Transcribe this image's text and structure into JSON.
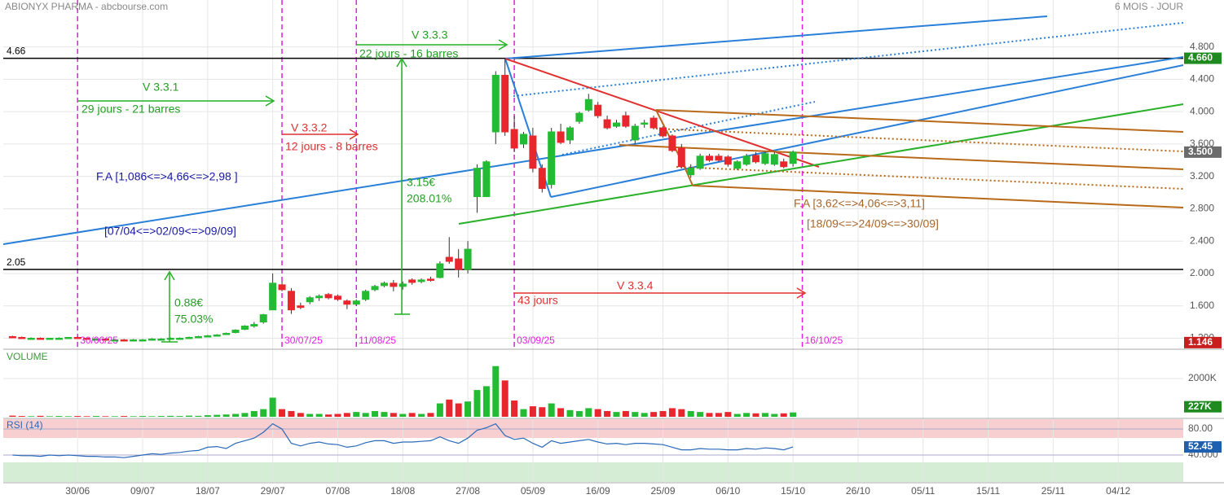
{
  "chart_data": {
    "type": "candlestick",
    "title": "ABIONYX PHARMA - abcbourse.com",
    "subtitle": "6 MOIS - JOUR",
    "up_color": "#22bb33",
    "down_color": "#e8262d",
    "ohlc": [
      [
        1.22,
        1.23,
        1.21,
        1.21
      ],
      [
        1.21,
        1.22,
        1.2,
        1.2
      ],
      [
        1.2,
        1.21,
        1.19,
        1.2
      ],
      [
        1.2,
        1.21,
        1.19,
        1.19
      ],
      [
        1.19,
        1.2,
        1.18,
        1.2
      ],
      [
        1.2,
        1.21,
        1.19,
        1.2
      ],
      [
        1.2,
        1.21,
        1.19,
        1.21
      ],
      [
        1.21,
        1.22,
        1.2,
        1.2
      ],
      [
        1.2,
        1.21,
        1.19,
        1.19
      ],
      [
        1.19,
        1.2,
        1.18,
        1.19
      ],
      [
        1.19,
        1.2,
        1.18,
        1.18
      ],
      [
        1.18,
        1.19,
        1.17,
        1.18
      ],
      [
        1.18,
        1.19,
        1.17,
        1.17
      ],
      [
        1.17,
        1.19,
        1.16,
        1.18
      ],
      [
        1.18,
        1.19,
        1.17,
        1.18
      ],
      [
        1.18,
        1.2,
        1.17,
        1.19
      ],
      [
        1.19,
        1.2,
        1.18,
        1.19
      ],
      [
        1.19,
        1.21,
        1.18,
        1.2
      ],
      [
        1.2,
        1.21,
        1.19,
        1.2
      ],
      [
        1.2,
        1.22,
        1.19,
        1.21
      ],
      [
        1.21,
        1.23,
        1.2,
        1.22
      ],
      [
        1.22,
        1.24,
        1.21,
        1.23
      ],
      [
        1.23,
        1.25,
        1.22,
        1.24
      ],
      [
        1.25,
        1.27,
        1.24,
        1.26
      ],
      [
        1.27,
        1.31,
        1.26,
        1.3
      ],
      [
        1.31,
        1.36,
        1.3,
        1.35
      ],
      [
        1.35,
        1.4,
        1.33,
        1.37
      ],
      [
        1.4,
        1.5,
        1.38,
        1.49
      ],
      [
        1.55,
        2.0,
        1.55,
        1.88
      ],
      [
        1.86,
        1.9,
        1.78,
        1.8
      ],
      [
        1.78,
        1.82,
        1.5,
        1.55
      ],
      [
        1.6,
        1.64,
        1.56,
        1.58
      ],
      [
        1.65,
        1.72,
        1.62,
        1.7
      ],
      [
        1.7,
        1.74,
        1.66,
        1.72
      ],
      [
        1.74,
        1.76,
        1.68,
        1.7
      ],
      [
        1.72,
        1.74,
        1.66,
        1.68
      ],
      [
        1.66,
        1.68,
        1.56,
        1.62
      ],
      [
        1.62,
        1.68,
        1.6,
        1.66
      ],
      [
        1.68,
        1.8,
        1.66,
        1.78
      ],
      [
        1.8,
        1.86,
        1.78,
        1.84
      ],
      [
        1.85,
        1.9,
        1.83,
        1.88
      ],
      [
        1.88,
        1.92,
        1.78,
        1.84
      ],
      [
        1.84,
        1.9,
        1.8,
        1.87
      ],
      [
        1.92,
        1.94,
        1.86,
        1.89
      ],
      [
        1.9,
        1.94,
        1.88,
        1.92
      ],
      [
        1.93,
        1.96,
        1.9,
        1.92
      ],
      [
        1.95,
        2.15,
        1.94,
        2.12
      ],
      [
        2.2,
        2.45,
        2.12,
        2.15
      ],
      [
        2.18,
        2.3,
        1.95,
        2.05
      ],
      [
        2.05,
        2.4,
        2.0,
        2.3
      ],
      [
        2.95,
        3.35,
        2.75,
        3.3
      ],
      [
        2.95,
        3.4,
        2.95,
        3.38
      ],
      [
        3.75,
        4.5,
        3.6,
        4.45
      ],
      [
        4.45,
        4.66,
        3.7,
        3.75
      ],
      [
        3.78,
        3.95,
        3.5,
        3.55
      ],
      [
        3.6,
        3.75,
        3.55,
        3.72
      ],
      [
        3.7,
        3.8,
        3.25,
        3.3
      ],
      [
        3.3,
        3.35,
        3.0,
        3.05
      ],
      [
        3.1,
        3.8,
        3.05,
        3.75
      ],
      [
        3.75,
        3.85,
        3.6,
        3.62
      ],
      [
        3.65,
        3.82,
        3.6,
        3.8
      ],
      [
        3.88,
        4.0,
        3.85,
        3.98
      ],
      [
        4.02,
        4.22,
        4.0,
        4.15
      ],
      [
        4.08,
        4.12,
        3.92,
        3.95
      ],
      [
        3.9,
        3.95,
        3.78,
        3.8
      ],
      [
        3.82,
        3.9,
        3.8,
        3.86
      ],
      [
        3.95,
        4.0,
        3.8,
        3.82
      ],
      [
        3.65,
        3.85,
        3.6,
        3.82
      ],
      [
        3.85,
        3.9,
        3.8,
        3.86
      ],
      [
        3.92,
        3.95,
        3.78,
        3.8
      ],
      [
        3.8,
        3.82,
        3.68,
        3.7
      ],
      [
        3.7,
        3.72,
        3.5,
        3.52
      ],
      [
        3.55,
        3.6,
        3.3,
        3.32
      ],
      [
        3.22,
        3.35,
        3.18,
        3.3
      ],
      [
        3.3,
        3.48,
        3.28,
        3.45
      ],
      [
        3.45,
        3.48,
        3.38,
        3.4
      ],
      [
        3.45,
        3.48,
        3.38,
        3.4
      ],
      [
        3.44,
        3.46,
        3.32,
        3.35
      ],
      [
        3.3,
        3.4,
        3.28,
        3.38
      ],
      [
        3.35,
        3.48,
        3.33,
        3.45
      ],
      [
        3.46,
        3.5,
        3.36,
        3.38
      ],
      [
        3.36,
        3.5,
        3.34,
        3.48
      ],
      [
        3.35,
        3.5,
        3.33,
        3.47
      ],
      [
        3.38,
        3.42,
        3.3,
        3.32
      ],
      [
        3.36,
        3.52,
        3.32,
        3.5
      ]
    ],
    "xlim": [
      -1,
      126
    ],
    "xticks": [
      {
        "value": 7,
        "label": "30/06"
      },
      {
        "value": 14,
        "label": "09/07"
      },
      {
        "value": 21,
        "label": "18/07"
      },
      {
        "value": 28,
        "label": "29/07"
      },
      {
        "value": 35,
        "label": "07/08"
      },
      {
        "value": 42,
        "label": "18/08"
      },
      {
        "value": 49,
        "label": "27/08"
      },
      {
        "value": 56,
        "label": "05/09"
      },
      {
        "value": 63,
        "label": "16/09"
      },
      {
        "value": 70,
        "label": "25/09"
      },
      {
        "value": 77,
        "label": "06/10"
      },
      {
        "value": 84,
        "label": "15/10"
      },
      {
        "value": 91,
        "label": "26/10"
      },
      {
        "value": 98,
        "label": "05/11"
      },
      {
        "value": 105,
        "label": "15/11"
      },
      {
        "value": 112,
        "label": "25/11"
      },
      {
        "value": 119,
        "label": "04/12"
      }
    ],
    "ylim": [
      1.074,
      5.38
    ],
    "yticks": [
      {
        "value": 1.2,
        "label": "1.200"
      },
      {
        "value": 1.6,
        "label": "1.600"
      },
      {
        "value": 2,
        "label": "2.000"
      },
      {
        "value": 2.4,
        "label": "2.400"
      },
      {
        "value": 2.8,
        "label": "2.800"
      },
      {
        "value": 3.2,
        "label": "3.200"
      },
      {
        "value": 3.6,
        "label": "3.600"
      },
      {
        "value": 4,
        "label": "4.000"
      },
      {
        "value": 4.4,
        "label": "4.400"
      },
      {
        "value": 4.8,
        "label": "4.800"
      }
    ],
    "grid": true,
    "hlines": [
      {
        "value": 4.66,
        "label": "4.66",
        "badge": "4.660"
      },
      {
        "value": 2.05,
        "label": "2.05"
      }
    ],
    "last_price": {
      "value": 3.5,
      "label": "3.500"
    },
    "low_badge": {
      "value": 1.146,
      "label": "1.146"
    },
    "vlines": [
      {
        "x": 7,
        "label": "30/06/25"
      },
      {
        "x": 29,
        "label": "30/07/25"
      },
      {
        "x": 37,
        "label": "11/08/25"
      },
      {
        "x": 54,
        "label": "03/09/25"
      },
      {
        "x": 85,
        "label": "16/10/25"
      }
    ],
    "annotations": [
      "V 3.3.1",
      "29 jours - 21 barres",
      "V 3.3.2",
      "12 jours - 8 barres",
      "V 3.3.3",
      "22 jours - 16 barres",
      "V 3.3.4",
      "43 jours",
      "0.88€",
      "75.03%",
      "3.15€",
      "208.01%",
      "F.A [1,086<=>4,66<=>2,98 ]",
      "[07/04<=>02/09<=>09/09]",
      "F.A [3,62<=>4,06<=>3,11]",
      "[18/09<=>24/09<=>30/09]"
    ],
    "volume": {
      "title": "VOLUME",
      "ylim": [
        0,
        3490
      ],
      "yticks": [
        {
          "value": 2000,
          "label": "2000K"
        }
      ],
      "last_label": "227K",
      "values": [
        60,
        40,
        30,
        50,
        30,
        40,
        30,
        40,
        30,
        40,
        30,
        30,
        40,
        30,
        40,
        30,
        40,
        50,
        40,
        60,
        50,
        80,
        100,
        120,
        150,
        200,
        300,
        400,
        1000,
        400,
        300,
        200,
        150,
        150,
        120,
        150,
        200,
        250,
        200,
        300,
        250,
        200,
        150,
        200,
        150,
        200,
        700,
        900,
        700,
        800,
        1400,
        1600,
        2650,
        1900,
        850,
        400,
        550,
        500,
        700,
        450,
        350,
        300,
        450,
        400,
        300,
        250,
        300,
        250,
        200,
        250,
        300,
        450,
        400,
        300,
        250,
        200,
        200,
        250,
        150,
        200,
        180,
        200,
        150,
        180,
        227
      ]
    },
    "rsi": {
      "title": "RSI (14)",
      "color": "#2a6ab8",
      "ylim": [
        -1.25,
        95
      ],
      "yticks": [
        {
          "value": 80,
          "label": "80.00"
        },
        {
          "value": 40,
          "label": "40.000"
        }
      ],
      "values": [
        40,
        39,
        39,
        38,
        40,
        39,
        40,
        39,
        38,
        38,
        37,
        37,
        36,
        38,
        40,
        42,
        41,
        43,
        44,
        46,
        47,
        52,
        53,
        50,
        58,
        62,
        66,
        75,
        88,
        80,
        58,
        54,
        58,
        60,
        57,
        56,
        52,
        54,
        59,
        62,
        62,
        58,
        60,
        60,
        61,
        62,
        68,
        62,
        58,
        66,
        78,
        82,
        88,
        70,
        64,
        66,
        58,
        52,
        62,
        58,
        60,
        62,
        64,
        60,
        57,
        58,
        56,
        58,
        58,
        57,
        56,
        52,
        48,
        48,
        50,
        49,
        49,
        48,
        48,
        50,
        49,
        51,
        50,
        48,
        52.45
      ]
    }
  }
}
